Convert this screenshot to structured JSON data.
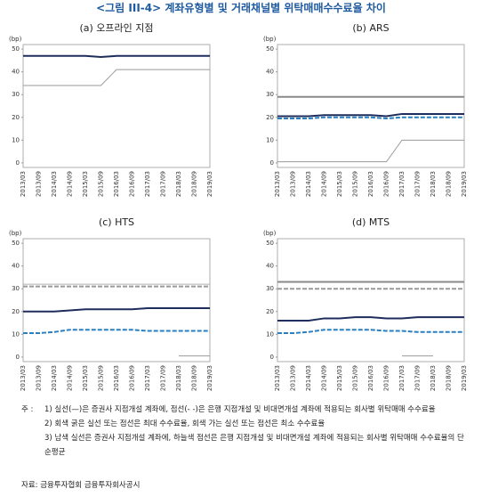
{
  "title": "<그림 III-4> 계좌유형별 및 거래채널별 위탁매매수수료율 차이",
  "note_label": "주   :",
  "notes": [
    "1) 실선(—)은 증권사 지점개설 계좌에, 점선(- -)은 은행 지점개설 및 비대면개설 계좌에 적용되는 회사별 위탁매매 수수료율",
    "2) 회색 굵은 실선 또는 점선은 최대 수수료율, 회색 가는 실선 또는 점선은 최소 수수료율",
    "3) 남색 실선은 증권사 지점개설 계좌에, 하늘색 점선은 은행 지점개설 및 비대면개설 계좌에 적용되는 회사별 위탁매매 수수료율의 단순평균"
  ],
  "source": "자료: 금융투자협회 금융투자회사공시",
  "chart_data": [
    {
      "type": "line",
      "title": "(a) 오프라인 지점",
      "y_unit": "(bp)",
      "ylim": [
        -2,
        52
      ],
      "yticks": [
        0,
        10,
        20,
        30,
        40,
        50
      ],
      "categories": [
        "2013/03",
        "2013/09",
        "2014/03",
        "2014/09",
        "2015/03",
        "2015/09",
        "2016/03",
        "2016/09",
        "2017/03",
        "2017/09",
        "2018/03",
        "2018/09",
        "2019/03"
      ],
      "series": [
        {
          "color": "#1f2d5c",
          "dashed": false,
          "weight": "thick",
          "values": [
            47,
            47,
            47,
            47,
            47,
            46.5,
            47,
            47,
            47,
            47,
            47,
            47,
            47
          ]
        },
        {
          "color": "#9a9a9a",
          "dashed": false,
          "weight": "thin",
          "values": [
            34,
            34,
            34,
            34,
            34,
            34,
            41,
            41,
            41,
            41,
            41,
            41,
            41
          ]
        }
      ]
    },
    {
      "type": "line",
      "title": "(b) ARS",
      "y_unit": "(bp)",
      "ylim": [
        -2,
        52
      ],
      "yticks": [
        0,
        10,
        20,
        30,
        40,
        50
      ],
      "categories": [
        "2013/03",
        "2013/09",
        "2014/03",
        "2014/09",
        "2015/03",
        "2015/09",
        "2016/03",
        "2016/09",
        "2017/03",
        "2017/09",
        "2018/03",
        "2018/09",
        "2019/03"
      ],
      "series": [
        {
          "color": "#8a8a8a",
          "dashed": false,
          "weight": "thick",
          "values": [
            29,
            29,
            29,
            29,
            29,
            29,
            29,
            29,
            29,
            29,
            29,
            29,
            29
          ]
        },
        {
          "color": "#1f2d5c",
          "dashed": false,
          "weight": "thick",
          "values": [
            20.5,
            20.5,
            20.5,
            21,
            21,
            21,
            21,
            20.5,
            21.5,
            21.5,
            21.5,
            21.5,
            21.5
          ]
        },
        {
          "color": "#2a7fc0",
          "dashed": true,
          "weight": "thick",
          "values": [
            19.5,
            19.5,
            19.5,
            20,
            20,
            20,
            20,
            19.5,
            20,
            20,
            20,
            20,
            20
          ]
        },
        {
          "color": "#9a9a9a",
          "dashed": false,
          "weight": "thin",
          "values": [
            0.5,
            0.5,
            0.5,
            0.5,
            0.5,
            0.5,
            0.5,
            0.5,
            10,
            10,
            10,
            10,
            10
          ]
        }
      ]
    },
    {
      "type": "line",
      "title": "(c) HTS",
      "y_unit": "(bp)",
      "ylim": [
        -2,
        52
      ],
      "yticks": [
        0,
        10,
        20,
        30,
        40,
        50
      ],
      "categories": [
        "2013/03",
        "2013/09",
        "2014/03",
        "2014/09",
        "2015/03",
        "2015/09",
        "2016/03",
        "2016/09",
        "2017/03",
        "2017/09",
        "2018/03",
        "2018/09",
        "2019/03"
      ],
      "series": [
        {
          "color": "#b0b0b0",
          "dashed": false,
          "weight": "thin",
          "values": [
            32,
            32,
            32,
            32,
            32,
            32,
            32,
            32,
            32,
            32,
            32,
            32,
            32
          ]
        },
        {
          "color": "#9a9a9a",
          "dashed": true,
          "weight": "thick",
          "values": [
            31,
            31,
            31,
            31,
            31,
            31,
            31,
            31,
            31,
            31,
            31,
            31,
            31
          ]
        },
        {
          "color": "#1f2d5c",
          "dashed": false,
          "weight": "thick",
          "values": [
            20,
            20,
            20,
            20.5,
            21,
            21,
            21,
            21,
            21.5,
            21.5,
            21.5,
            21.5,
            21.5
          ]
        },
        {
          "color": "#2a7fc0",
          "dashed": true,
          "weight": "thick",
          "values": [
            10.5,
            10.5,
            11,
            12,
            12,
            12,
            12,
            12,
            11.5,
            11.5,
            11.5,
            11.5,
            11.5
          ]
        },
        {
          "color": "#9a9a9a",
          "dashed": false,
          "weight": "thin",
          "values": [
            null,
            null,
            null,
            null,
            null,
            null,
            null,
            null,
            null,
            null,
            0.5,
            0.5,
            0.5
          ]
        }
      ]
    },
    {
      "type": "line",
      "title": "(d) MTS",
      "y_unit": "(bp)",
      "ylim": [
        -2,
        52
      ],
      "yticks": [
        0,
        10,
        20,
        30,
        40,
        50
      ],
      "categories": [
        "2013/03",
        "2013/09",
        "2014/03",
        "2014/09",
        "2015/03",
        "2015/09",
        "2016/03",
        "2016/09",
        "2017/03",
        "2017/09",
        "2018/03",
        "2018/09",
        "2019/03"
      ],
      "series": [
        {
          "color": "#8a8a8a",
          "dashed": false,
          "weight": "thick",
          "values": [
            33,
            33,
            33,
            33,
            33,
            33,
            33,
            33,
            33,
            33,
            33,
            33,
            33
          ]
        },
        {
          "color": "#9a9a9a",
          "dashed": true,
          "weight": "thick",
          "values": [
            30,
            30,
            30,
            30,
            30,
            30,
            30,
            30,
            30,
            30,
            30,
            30,
            30
          ]
        },
        {
          "color": "#1f2d5c",
          "dashed": false,
          "weight": "thick",
          "values": [
            16,
            16,
            16,
            17,
            17,
            17.5,
            17.5,
            17,
            17,
            17.5,
            17.5,
            17.5,
            17.5
          ]
        },
        {
          "color": "#2a7fc0",
          "dashed": true,
          "weight": "thick",
          "values": [
            10.5,
            10.5,
            11,
            12,
            12,
            12,
            12,
            11.5,
            11.5,
            11,
            11,
            11,
            11
          ]
        },
        {
          "color": "#9a9a9a",
          "dashed": false,
          "weight": "thin",
          "values": [
            null,
            null,
            null,
            null,
            null,
            null,
            null,
            null,
            0.5,
            0.5,
            0.5,
            null,
            null
          ]
        }
      ]
    }
  ]
}
